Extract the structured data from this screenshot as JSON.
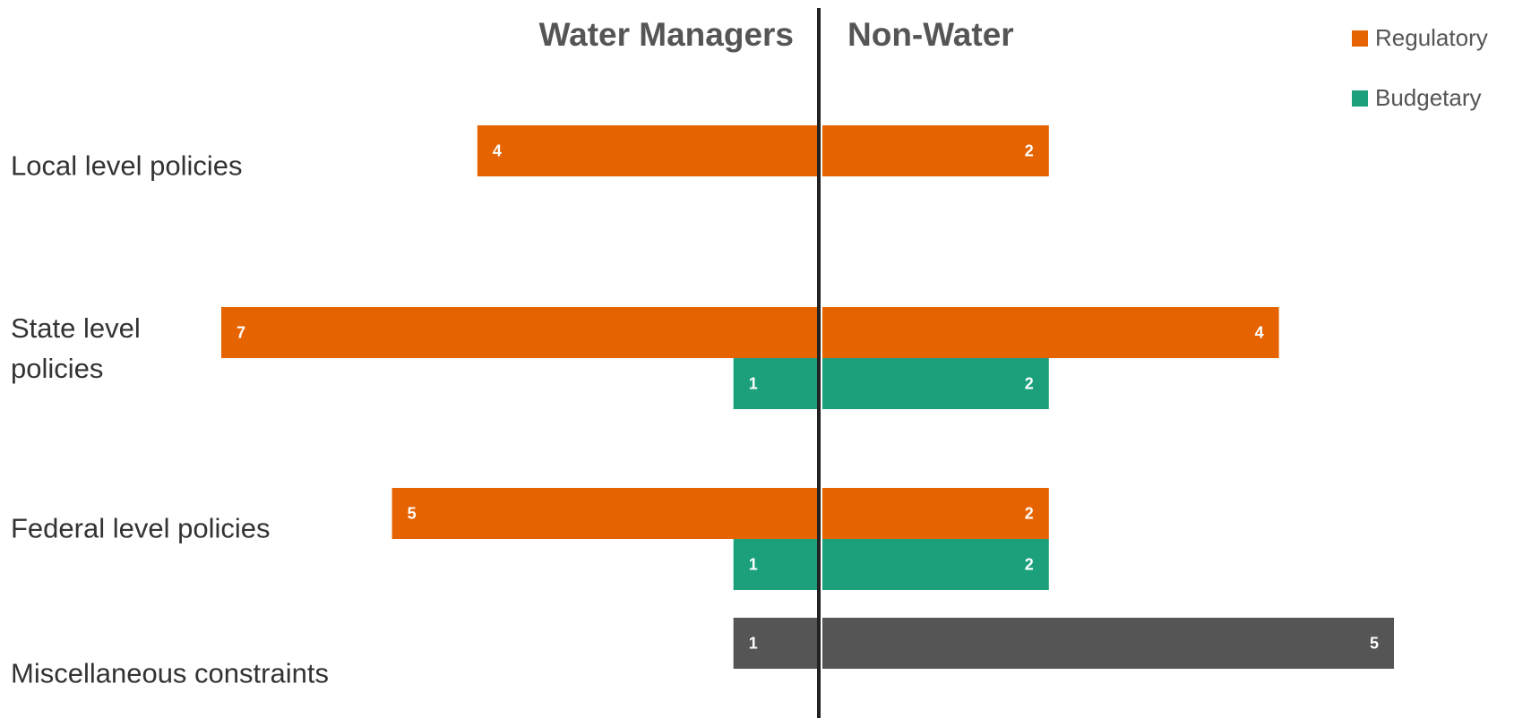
{
  "chart_data": {
    "type": "diverging_bar",
    "left_title": "Water Managers",
    "right_title": "Non-Water",
    "categories": [
      "Local level policies",
      "State level\npolicies",
      "Federal level policies",
      "Miscellaneous constraints"
    ],
    "left_xlim": [
      0,
      7
    ],
    "right_xlim": [
      0,
      5
    ],
    "series": [
      {
        "name": "Regulatory",
        "color": "#e56300",
        "left": [
          4,
          7,
          5,
          null
        ],
        "right": [
          2,
          4,
          2,
          null
        ]
      },
      {
        "name": "Budgetary",
        "color": "#1ba07b",
        "left": [
          null,
          1,
          1,
          null
        ],
        "right": [
          null,
          2,
          2,
          null
        ]
      },
      {
        "color": "#555555",
        "left": [
          null,
          null,
          null,
          1
        ],
        "right": [
          null,
          null,
          null,
          5
        ]
      }
    ],
    "legend": "top-right"
  }
}
